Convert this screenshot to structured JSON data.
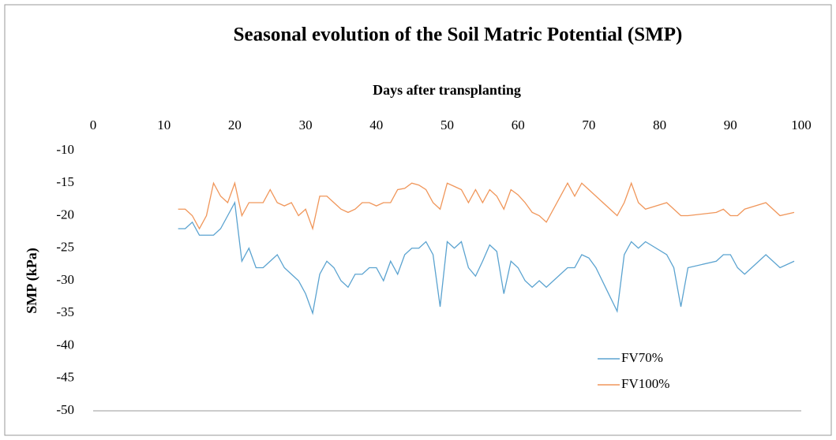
{
  "chart_data": {
    "type": "line",
    "title": "Seasonal evolution of the Soil Matric Potential (SMP)",
    "x_label": "Days after transplanting",
    "y_label": "SMP (kPa)",
    "xlim": [
      0,
      100
    ],
    "xticks": [
      0,
      10,
      20,
      30,
      40,
      50,
      60,
      70,
      80,
      90,
      100
    ],
    "ylim": [
      -50,
      -10
    ],
    "yticks": [
      -10,
      -15,
      -20,
      -25,
      -30,
      -35,
      -40,
      -45,
      -50
    ],
    "legend": "lower right",
    "series": [
      {
        "name": "FV70%",
        "color": "#5ba3d0",
        "x": [
          12,
          13,
          14,
          15,
          16,
          17,
          18,
          19,
          20,
          21,
          22,
          23,
          24,
          25,
          26,
          27,
          28,
          29,
          30,
          31,
          32,
          33,
          34,
          35,
          36,
          37,
          38,
          39,
          40,
          41,
          42,
          43,
          44,
          45,
          46,
          47,
          48,
          49,
          50,
          51,
          52,
          53,
          54,
          55,
          56,
          57,
          58,
          59,
          60,
          61,
          62,
          63,
          64,
          67,
          68,
          69,
          70,
          71,
          74,
          75,
          76,
          77,
          78,
          81,
          82,
          83,
          84,
          88,
          89,
          90,
          91,
          92,
          95,
          97,
          99
        ],
        "values": [
          -22,
          -22,
          -21,
          -23,
          -23,
          -23,
          -22,
          -20,
          -18,
          -27,
          -25,
          -28,
          -28,
          -27,
          -26,
          -28,
          -29,
          -30,
          -32,
          -35,
          -29,
          -27,
          -28,
          -30,
          -31,
          -29,
          -29,
          -28,
          -28,
          -30,
          -27,
          -29,
          -26,
          -25,
          -25,
          -24,
          -26,
          -34,
          -24,
          -25,
          -24,
          -28,
          -29.3,
          -27,
          -24.5,
          -25.5,
          -32,
          -27,
          -28,
          -30,
          -31,
          -30,
          -31,
          -28,
          -28,
          -26,
          -26.5,
          -28,
          -34.7,
          -26,
          -24,
          -25,
          -24,
          -26,
          -28,
          -34,
          -28,
          -27,
          -26,
          -26,
          -28,
          -29,
          -26,
          -28,
          -27
        ]
      },
      {
        "name": "FV100%",
        "color": "#f0965a",
        "x": [
          12,
          13,
          14,
          15,
          16,
          17,
          18,
          19,
          20,
          21,
          22,
          23,
          24,
          25,
          26,
          27,
          28,
          29,
          30,
          31,
          32,
          33,
          34,
          35,
          36,
          37,
          38,
          39,
          40,
          41,
          42,
          43,
          44,
          45,
          46,
          47,
          48,
          49,
          50,
          51,
          52,
          53,
          54,
          55,
          56,
          57,
          58,
          59,
          60,
          61,
          62,
          63,
          64,
          67,
          68,
          69,
          70,
          74,
          75,
          76,
          77,
          78,
          81,
          83,
          84,
          88,
          89,
          90,
          91,
          92,
          95,
          97,
          99
        ],
        "values": [
          -19,
          -19,
          -20,
          -22,
          -20,
          -15,
          -17,
          -18,
          -15,
          -20,
          -18,
          -18,
          -18,
          -16,
          -18,
          -18.5,
          -18,
          -20,
          -19,
          -22,
          -17,
          -17,
          -18,
          -19,
          -19.5,
          -19,
          -18,
          -18,
          -18.5,
          -18,
          -18,
          -16,
          -15.8,
          -15,
          -15.3,
          -16,
          -18,
          -19,
          -15,
          -15.5,
          -16,
          -18,
          -16,
          -18,
          -16,
          -17,
          -19,
          -16,
          -16.8,
          -18,
          -19.5,
          -20,
          -21,
          -15,
          -17,
          -15,
          -16,
          -20,
          -18,
          -15,
          -18,
          -19,
          -18,
          -20,
          -20,
          -19.5,
          -19,
          -20,
          -20,
          -19,
          -18,
          -20,
          -19.5
        ]
      }
    ]
  }
}
